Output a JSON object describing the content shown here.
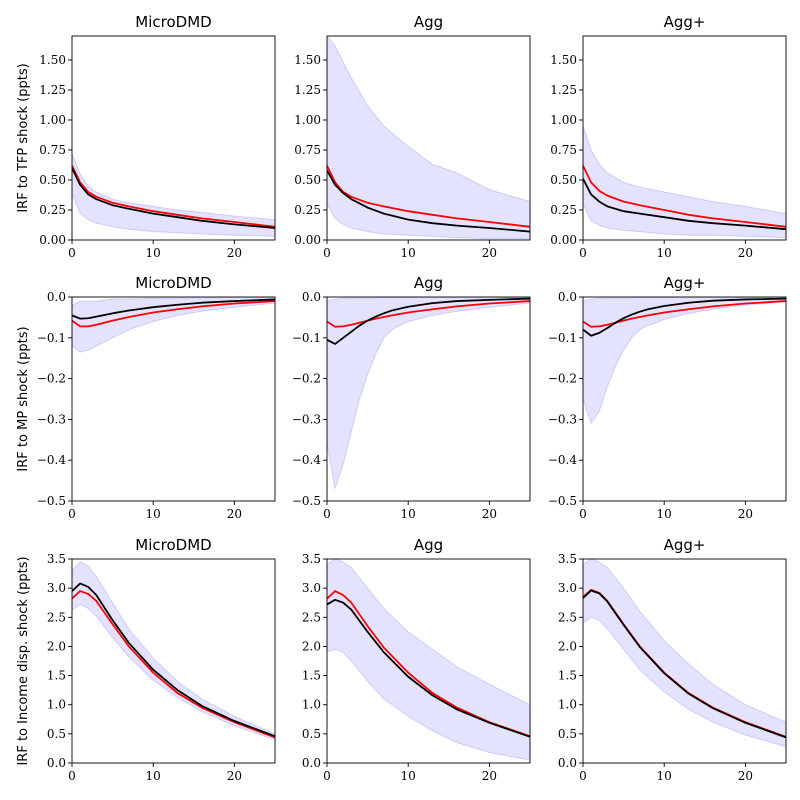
{
  "chart_data": [
    {
      "type": "line",
      "title": "MicroDMD",
      "ylabel": "IRF to TFP shock (ppts)",
      "xlim": [
        0,
        25
      ],
      "ylim": [
        0,
        1.7
      ],
      "xticks": [
        0,
        10,
        20
      ],
      "yticks": [
        0.0,
        0.25,
        0.5,
        0.75,
        1.0,
        1.25,
        1.5
      ],
      "ytick_labels": [
        "0.00",
        "0.25",
        "0.50",
        "0.75",
        "1.00",
        "1.25",
        "1.50"
      ],
      "x": [
        0,
        1,
        2,
        3,
        5,
        7,
        10,
        13,
        16,
        20,
        25
      ],
      "band_upper": [
        0.72,
        0.55,
        0.45,
        0.4,
        0.34,
        0.31,
        0.28,
        0.25,
        0.23,
        0.2,
        0.17
      ],
      "band_lower": [
        0.38,
        0.22,
        0.17,
        0.14,
        0.11,
        0.09,
        0.07,
        0.06,
        0.05,
        0.04,
        0.03
      ],
      "series": [
        {
          "name": "red",
          "color": "#ff0000",
          "values": [
            0.62,
            0.48,
            0.4,
            0.36,
            0.31,
            0.28,
            0.24,
            0.21,
            0.18,
            0.15,
            0.11
          ]
        },
        {
          "name": "black",
          "color": "#000000",
          "values": [
            0.6,
            0.46,
            0.38,
            0.34,
            0.29,
            0.26,
            0.22,
            0.19,
            0.16,
            0.13,
            0.1
          ]
        }
      ]
    },
    {
      "type": "line",
      "title": "Agg",
      "ylabel": "",
      "xlim": [
        0,
        25
      ],
      "ylim": [
        0,
        1.7
      ],
      "xticks": [
        0,
        10,
        20
      ],
      "yticks": [
        0.0,
        0.25,
        0.5,
        0.75,
        1.0,
        1.25,
        1.5
      ],
      "ytick_labels": [
        "0.00",
        "0.25",
        "0.50",
        "0.75",
        "1.00",
        "1.25",
        "1.50"
      ],
      "x": [
        0,
        1,
        2,
        3,
        5,
        7,
        10,
        13,
        16,
        20,
        25
      ],
      "band_upper": [
        1.7,
        1.62,
        1.48,
        1.35,
        1.12,
        0.95,
        0.78,
        0.63,
        0.56,
        0.42,
        0.32
      ],
      "band_lower": [
        0.3,
        0.18,
        0.13,
        0.1,
        0.07,
        0.05,
        0.04,
        0.03,
        0.02,
        0.01,
        0.01
      ],
      "series": [
        {
          "name": "red",
          "color": "#ff0000",
          "values": [
            0.62,
            0.48,
            0.4,
            0.36,
            0.31,
            0.28,
            0.24,
            0.21,
            0.18,
            0.15,
            0.11
          ]
        },
        {
          "name": "black",
          "color": "#000000",
          "values": [
            0.58,
            0.46,
            0.39,
            0.34,
            0.27,
            0.22,
            0.17,
            0.14,
            0.12,
            0.1,
            0.07
          ]
        }
      ]
    },
    {
      "type": "line",
      "title": "Agg+",
      "ylabel": "",
      "xlim": [
        0,
        25
      ],
      "ylim": [
        0,
        1.7
      ],
      "xticks": [
        0,
        10,
        20
      ],
      "yticks": [
        0.0,
        0.25,
        0.5,
        0.75,
        1.0,
        1.25,
        1.5
      ],
      "ytick_labels": [
        "0.00",
        "0.25",
        "0.50",
        "0.75",
        "1.00",
        "1.25",
        "1.50"
      ],
      "x": [
        0,
        1,
        2,
        3,
        5,
        7,
        10,
        13,
        16,
        20,
        25
      ],
      "band_upper": [
        0.95,
        0.75,
        0.63,
        0.56,
        0.48,
        0.44,
        0.4,
        0.36,
        0.32,
        0.28,
        0.22
      ],
      "band_lower": [
        0.3,
        0.16,
        0.12,
        0.1,
        0.08,
        0.07,
        0.05,
        0.04,
        0.04,
        0.03,
        0.02
      ],
      "series": [
        {
          "name": "red",
          "color": "#ff0000",
          "values": [
            0.62,
            0.48,
            0.41,
            0.37,
            0.32,
            0.29,
            0.25,
            0.21,
            0.18,
            0.15,
            0.11
          ]
        },
        {
          "name": "black",
          "color": "#000000",
          "values": [
            0.51,
            0.38,
            0.32,
            0.28,
            0.24,
            0.22,
            0.19,
            0.16,
            0.14,
            0.12,
            0.09
          ]
        }
      ]
    },
    {
      "type": "line",
      "title": "MicroDMD",
      "ylabel": "IRF to MP shock (ppts)",
      "xlim": [
        0,
        25
      ],
      "ylim": [
        -0.5,
        0
      ],
      "xticks": [
        0,
        10,
        20
      ],
      "yticks": [
        0.0,
        -0.1,
        -0.2,
        -0.3,
        -0.4,
        -0.5
      ],
      "ytick_labels": [
        "0.0",
        "−0.1",
        "−0.2",
        "−0.3",
        "−0.4",
        "−0.5"
      ],
      "x": [
        0,
        1,
        2,
        3,
        5,
        7,
        10,
        13,
        16,
        20,
        25
      ],
      "band_upper": [
        -0.02,
        -0.01,
        -0.01,
        -0.01,
        -0.005,
        -0.005,
        -0.003,
        -0.002,
        -0.002,
        -0.001,
        -0.001
      ],
      "band_lower": [
        -0.12,
        -0.135,
        -0.13,
        -0.12,
        -0.1,
        -0.08,
        -0.06,
        -0.045,
        -0.035,
        -0.025,
        -0.015
      ],
      "series": [
        {
          "name": "red",
          "color": "#ff0000",
          "values": [
            -0.058,
            -0.072,
            -0.072,
            -0.068,
            -0.058,
            -0.049,
            -0.038,
            -0.03,
            -0.023,
            -0.016,
            -0.01
          ]
        },
        {
          "name": "black",
          "color": "#000000",
          "values": [
            -0.045,
            -0.053,
            -0.052,
            -0.048,
            -0.04,
            -0.033,
            -0.025,
            -0.019,
            -0.014,
            -0.01,
            -0.006
          ]
        }
      ]
    },
    {
      "type": "line",
      "title": "Agg",
      "ylabel": "",
      "xlim": [
        0,
        25
      ],
      "ylim": [
        -0.5,
        0
      ],
      "xticks": [
        0,
        10,
        20
      ],
      "yticks": [
        0.0,
        -0.1,
        -0.2,
        -0.3,
        -0.4,
        -0.5
      ],
      "ytick_labels": [
        "0.0",
        "−0.1",
        "−0.2",
        "−0.3",
        "−0.4",
        "−0.5"
      ],
      "x": [
        0,
        1,
        2,
        3,
        4,
        5,
        6,
        7,
        8,
        10,
        13,
        16,
        20,
        25
      ],
      "band_upper": [
        -0.01,
        -0.005,
        -0.003,
        -0.002,
        -0.002,
        -0.002,
        -0.002,
        -0.001,
        -0.001,
        -0.001,
        -0.001,
        -0.001,
        -0.001,
        -0.001
      ],
      "band_lower": [
        -0.36,
        -0.47,
        -0.41,
        -0.33,
        -0.25,
        -0.19,
        -0.14,
        -0.1,
        -0.08,
        -0.06,
        -0.045,
        -0.035,
        -0.025,
        -0.015
      ],
      "series": [
        {
          "name": "red",
          "color": "#ff0000",
          "values": [
            -0.06,
            -0.073,
            -0.072,
            -0.068,
            -0.063,
            -0.058,
            -0.053,
            -0.049,
            -0.045,
            -0.038,
            -0.03,
            -0.023,
            -0.016,
            -0.01
          ]
        },
        {
          "name": "black",
          "color": "#000000",
          "values": [
            -0.105,
            -0.115,
            -0.1,
            -0.085,
            -0.07,
            -0.058,
            -0.048,
            -0.04,
            -0.033,
            -0.024,
            -0.015,
            -0.01,
            -0.007,
            -0.004
          ]
        }
      ]
    },
    {
      "type": "line",
      "title": "Agg+",
      "ylabel": "",
      "xlim": [
        0,
        25
      ],
      "ylim": [
        -0.5,
        0
      ],
      "xticks": [
        0,
        10,
        20
      ],
      "yticks": [
        0.0,
        -0.1,
        -0.2,
        -0.3,
        -0.4,
        -0.5
      ],
      "ytick_labels": [
        "0.0",
        "−0.1",
        "−0.2",
        "−0.3",
        "−0.4",
        "−0.5"
      ],
      "x": [
        0,
        1,
        2,
        3,
        4,
        5,
        6,
        7,
        8,
        10,
        13,
        16,
        20,
        25
      ],
      "band_upper": [
        -0.01,
        -0.005,
        -0.003,
        -0.002,
        -0.002,
        -0.002,
        -0.002,
        -0.001,
        -0.001,
        -0.001,
        -0.001,
        -0.001,
        -0.001,
        -0.001
      ],
      "band_lower": [
        -0.25,
        -0.31,
        -0.28,
        -0.22,
        -0.17,
        -0.13,
        -0.1,
        -0.08,
        -0.07,
        -0.055,
        -0.04,
        -0.03,
        -0.02,
        -0.012
      ],
      "series": [
        {
          "name": "red",
          "color": "#ff0000",
          "values": [
            -0.06,
            -0.073,
            -0.072,
            -0.068,
            -0.063,
            -0.058,
            -0.053,
            -0.049,
            -0.045,
            -0.038,
            -0.03,
            -0.023,
            -0.016,
            -0.01
          ]
        },
        {
          "name": "black",
          "color": "#000000",
          "values": [
            -0.08,
            -0.095,
            -0.088,
            -0.076,
            -0.063,
            -0.052,
            -0.043,
            -0.036,
            -0.03,
            -0.022,
            -0.014,
            -0.009,
            -0.006,
            -0.004
          ]
        }
      ]
    },
    {
      "type": "line",
      "title": "MicroDMD",
      "ylabel": "IRF to Income disp. shock (ppts)",
      "xlim": [
        0,
        25
      ],
      "ylim": [
        0,
        3.5
      ],
      "xticks": [
        0,
        10,
        20
      ],
      "yticks": [
        0.0,
        0.5,
        1.0,
        1.5,
        2.0,
        2.5,
        3.0,
        3.5
      ],
      "ytick_labels": [
        "0.0",
        "0.5",
        "1.0",
        "1.5",
        "2.0",
        "2.5",
        "3.0",
        "3.5"
      ],
      "x": [
        0,
        1,
        2,
        3,
        5,
        7,
        10,
        13,
        16,
        20,
        25
      ],
      "band_upper": [
        3.3,
        3.45,
        3.38,
        3.2,
        2.75,
        2.3,
        1.8,
        1.4,
        1.1,
        0.8,
        0.5
      ],
      "band_lower": [
        2.62,
        2.72,
        2.65,
        2.52,
        2.15,
        1.82,
        1.42,
        1.12,
        0.88,
        0.64,
        0.4
      ],
      "series": [
        {
          "name": "red",
          "color": "#ff0000",
          "values": [
            2.82,
            2.95,
            2.9,
            2.78,
            2.38,
            2.0,
            1.55,
            1.2,
            0.95,
            0.7,
            0.44
          ]
        },
        {
          "name": "black",
          "color": "#000000",
          "values": [
            2.95,
            3.08,
            3.02,
            2.88,
            2.45,
            2.06,
            1.6,
            1.25,
            0.98,
            0.72,
            0.46
          ]
        }
      ]
    },
    {
      "type": "line",
      "title": "Agg",
      "ylabel": "",
      "xlim": [
        0,
        25
      ],
      "ylim": [
        0,
        3.5
      ],
      "xticks": [
        0,
        10,
        20
      ],
      "yticks": [
        0.0,
        0.5,
        1.0,
        1.5,
        2.0,
        2.5,
        3.0,
        3.5
      ],
      "ytick_labels": [
        "0.0",
        "0.5",
        "1.0",
        "1.5",
        "2.0",
        "2.5",
        "3.0",
        "3.5"
      ],
      "x": [
        0,
        1,
        2,
        3,
        5,
        7,
        10,
        13,
        16,
        20,
        25
      ],
      "band_upper": [
        3.4,
        3.5,
        3.45,
        3.35,
        3.0,
        2.65,
        2.25,
        1.95,
        1.65,
        1.35,
        1.0
      ],
      "band_lower": [
        1.9,
        1.95,
        1.9,
        1.75,
        1.4,
        1.1,
        0.8,
        0.55,
        0.35,
        0.18,
        0.05
      ],
      "series": [
        {
          "name": "red",
          "color": "#ff0000",
          "values": [
            2.82,
            2.95,
            2.88,
            2.75,
            2.35,
            1.98,
            1.55,
            1.2,
            0.95,
            0.7,
            0.46
          ]
        },
        {
          "name": "black",
          "color": "#000000",
          "values": [
            2.72,
            2.8,
            2.75,
            2.63,
            2.25,
            1.9,
            1.48,
            1.16,
            0.92,
            0.69,
            0.45
          ]
        }
      ]
    },
    {
      "type": "line",
      "title": "Agg+",
      "ylabel": "",
      "xlim": [
        0,
        25
      ],
      "ylim": [
        0,
        3.5
      ],
      "xticks": [
        0,
        10,
        20
      ],
      "yticks": [
        0.0,
        0.5,
        1.0,
        1.5,
        2.0,
        2.5,
        3.0,
        3.5
      ],
      "ytick_labels": [
        "0.0",
        "0.5",
        "1.0",
        "1.5",
        "2.0",
        "2.5",
        "3.0",
        "3.5"
      ],
      "x": [
        0,
        1,
        2,
        3,
        5,
        7,
        10,
        13,
        16,
        20,
        25
      ],
      "band_upper": [
        3.4,
        3.5,
        3.45,
        3.35,
        3.0,
        2.6,
        2.1,
        1.7,
        1.35,
        1.0,
        0.7
      ],
      "band_lower": [
        2.4,
        2.5,
        2.45,
        2.3,
        1.95,
        1.6,
        1.22,
        0.92,
        0.7,
        0.48,
        0.28
      ],
      "series": [
        {
          "name": "red",
          "color": "#ff0000",
          "values": [
            2.85,
            2.97,
            2.92,
            2.78,
            2.38,
            2.0,
            1.55,
            1.2,
            0.95,
            0.7,
            0.45
          ]
        },
        {
          "name": "black",
          "color": "#000000",
          "values": [
            2.83,
            2.96,
            2.91,
            2.77,
            2.37,
            1.99,
            1.54,
            1.19,
            0.94,
            0.69,
            0.44
          ]
        }
      ]
    }
  ]
}
